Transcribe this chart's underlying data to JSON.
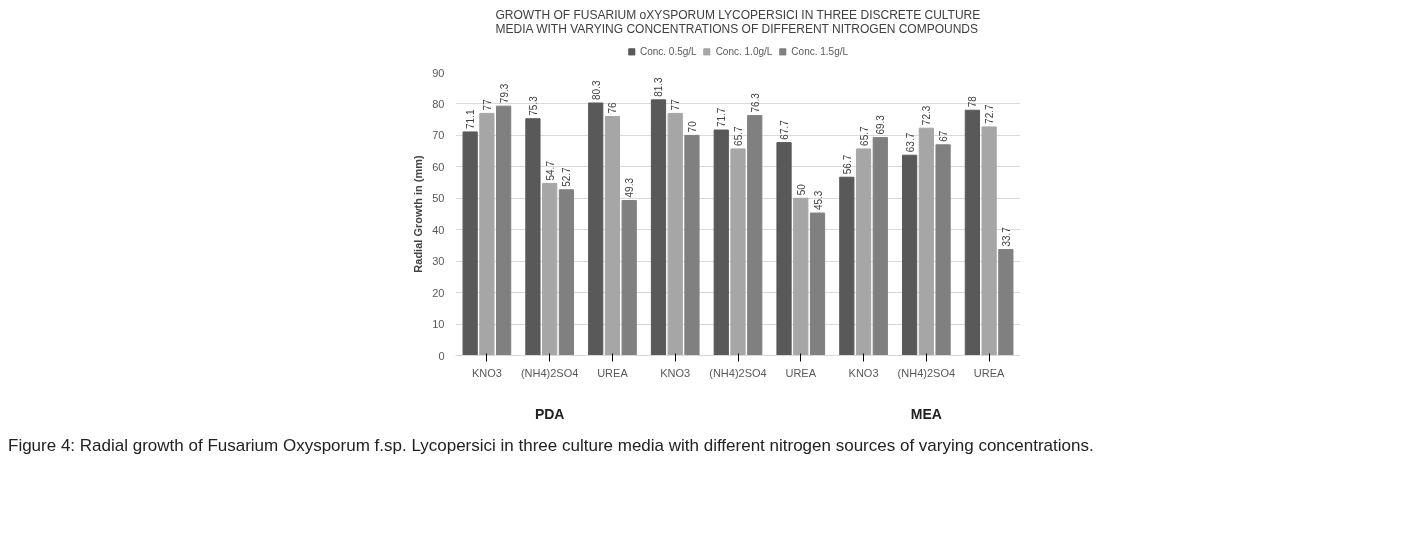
{
  "chart_data": {
    "type": "bar",
    "title": "GROWTH OF FUSARIUM oXYSPORUM LYCOPERSICI IN THREE DISCRETE CULTURE\nMEDIA WITH VARYING CONCENTRATIONS OF DIFFERENT NITROGEN COMPOUNDS",
    "ylabel": "Radial Growth in (mm)",
    "categories": [
      "KNO3",
      "(NH4)2SO4",
      "UREA",
      "KNO3",
      "(NH4)2SO4",
      "UREA",
      "KNO3",
      "(NH4)2SO4",
      "UREA"
    ],
    "series": [
      {
        "name": "Conc. 0.5g/L",
        "color": "#595959",
        "values": [
          71.1,
          75.3,
          80.3,
          81.3,
          71.7,
          67.7,
          56.7,
          63.7,
          78
        ]
      },
      {
        "name": "Conc. 1.0g/L",
        "color": "#a6a6a6",
        "values": [
          77,
          54.7,
          76,
          77,
          65.7,
          50,
          65.7,
          72.3,
          72.7
        ]
      },
      {
        "name": "Conc. 1.5g/L",
        "color": "#808080",
        "values": [
          79.3,
          52.7,
          49.3,
          70,
          76.3,
          45.3,
          69.3,
          67,
          33.7
        ]
      }
    ],
    "ylim": [
      0,
      90
    ],
    "yticks": [
      0,
      10,
      20,
      30,
      40,
      50,
      60,
      70,
      80,
      90
    ],
    "grid": "y",
    "legend": "top",
    "data_labels": true,
    "annotations": [
      "PDA",
      null,
      "MEA",
      "Figure 4: Radial growth of Fusarium Oxysporum f.sp. Lycopersici in three culture media with different nitrogen sources of varying concentrations."
    ]
  }
}
